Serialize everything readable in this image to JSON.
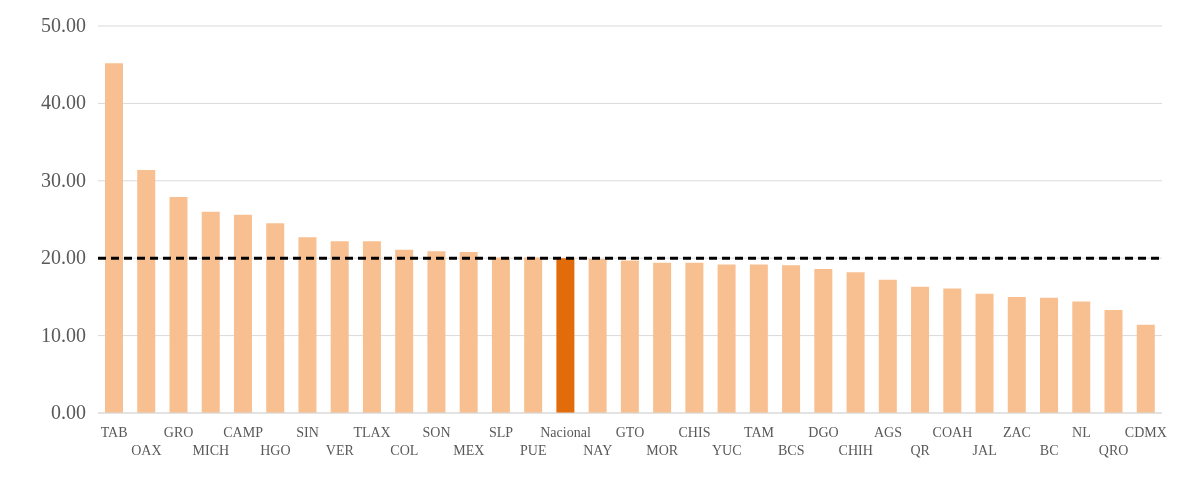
{
  "chart_data": {
    "type": "bar",
    "categories": [
      "TAB",
      "OAX",
      "GRO",
      "MICH",
      "CAMP",
      "HGO",
      "SIN",
      "VER",
      "TLAX",
      "COL",
      "SON",
      "MEX",
      "SLP",
      "PUE",
      "Nacional",
      "NAY",
      "GTO",
      "MOR",
      "CHIS",
      "YUC",
      "TAM",
      "BCS",
      "DGO",
      "CHIH",
      "AGS",
      "QR",
      "COAH",
      "JAL",
      "ZAC",
      "BC",
      "NL",
      "QRO",
      "CDMX"
    ],
    "values": [
      45.2,
      31.4,
      27.9,
      26.0,
      25.6,
      24.5,
      22.7,
      22.2,
      22.2,
      21.1,
      20.9,
      20.8,
      20.1,
      20.1,
      20.0,
      19.9,
      19.7,
      19.4,
      19.4,
      19.2,
      19.2,
      19.1,
      18.6,
      18.2,
      17.2,
      16.3,
      16.1,
      15.4,
      15.0,
      14.9,
      14.4,
      13.3,
      11.4
    ],
    "colors": [
      "#f8c090",
      "#f8c090",
      "#f8c090",
      "#f8c090",
      "#f8c090",
      "#f8c090",
      "#f8c090",
      "#f8c090",
      "#f8c090",
      "#f8c090",
      "#f8c090",
      "#f8c090",
      "#f8c090",
      "#f8c090",
      "#e36c0a",
      "#f8c090",
      "#f8c090",
      "#f8c090",
      "#f8c090",
      "#f8c090",
      "#f8c090",
      "#f8c090",
      "#f8c090",
      "#f8c090",
      "#f8c090",
      "#f8c090",
      "#f8c090",
      "#f8c090",
      "#f8c090",
      "#f8c090",
      "#f8c090",
      "#f8c090",
      "#f8c090"
    ],
    "ylim": [
      0,
      50
    ],
    "yticks": [
      {
        "value": 0,
        "label": "0.00"
      },
      {
        "value": 10,
        "label": "10.00"
      },
      {
        "value": 20,
        "label": "20.00"
      },
      {
        "value": 30,
        "label": "30.00"
      },
      {
        "value": 40,
        "label": "40.00"
      },
      {
        "value": 50,
        "label": "50.00"
      }
    ],
    "grid": "y",
    "legend": false,
    "ref_lines": [
      {
        "axis": "y",
        "value": 20,
        "color": "#000000",
        "line_style": "dashed"
      }
    ]
  }
}
